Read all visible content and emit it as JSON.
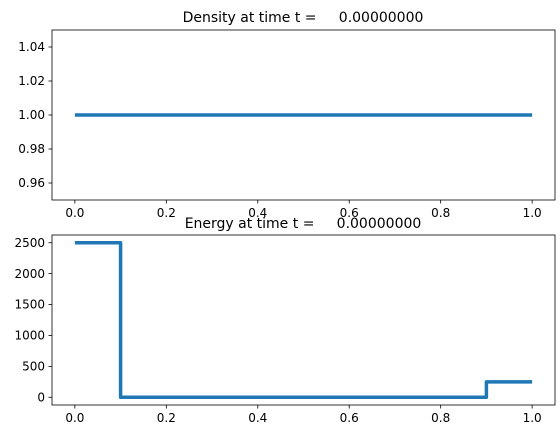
{
  "chart_data": [
    {
      "type": "line",
      "title": "Density at time t =     0.00000000",
      "xlabel": "",
      "ylabel": "",
      "xlim": [
        -0.05,
        1.05
      ],
      "ylim": [
        0.95,
        1.05
      ],
      "xticks": [
        0.0,
        0.2,
        0.4,
        0.6,
        0.8,
        1.0
      ],
      "xtick_labels": [
        "0.0",
        "0.2",
        "0.4",
        "0.6",
        "0.8",
        "1.0"
      ],
      "yticks": [
        0.96,
        0.98,
        1.0,
        1.02,
        1.04
      ],
      "ytick_labels": [
        "0.96",
        "0.98",
        "1.00",
        "1.02",
        "1.04"
      ],
      "grid": false,
      "series": [
        {
          "color": "#1f77b4",
          "x": [
            0.0,
            1.0
          ],
          "y": [
            1.0,
            1.0
          ]
        }
      ]
    },
    {
      "type": "line",
      "title": "Energy at time t =     0.00000000",
      "xlabel": "",
      "ylabel": "",
      "xlim": [
        -0.05,
        1.05
      ],
      "ylim": [
        -125,
        2625
      ],
      "xticks": [
        0.0,
        0.2,
        0.4,
        0.6,
        0.8,
        1.0
      ],
      "xtick_labels": [
        "0.0",
        "0.2",
        "0.4",
        "0.6",
        "0.8",
        "1.0"
      ],
      "yticks": [
        0,
        500,
        1000,
        1500,
        2000,
        2500
      ],
      "ytick_labels": [
        "0",
        "500",
        "1000",
        "1500",
        "2000",
        "2500"
      ],
      "grid": false,
      "series": [
        {
          "color": "#1f77b4",
          "x": [
            0.0,
            0.1,
            0.1,
            0.9,
            0.9,
            1.0
          ],
          "y": [
            2500,
            2500,
            0.01,
            0.01,
            250,
            250
          ]
        }
      ]
    }
  ]
}
